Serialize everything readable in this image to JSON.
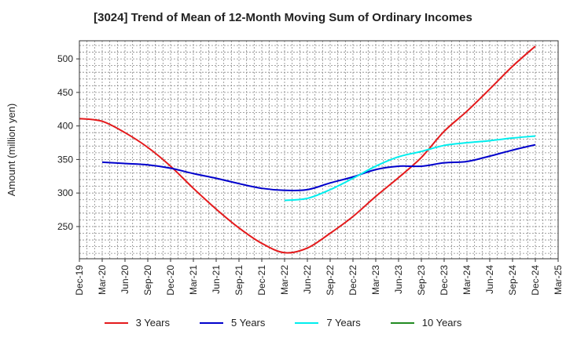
{
  "chart_data": {
    "type": "line",
    "title": "[3024]  Trend of Mean of 12-Month Moving Sum of Ordinary Incomes",
    "xlabel": "",
    "ylabel": "Amount (million yen)",
    "x_ticks": [
      "Dec-19",
      "Mar-20",
      "Jun-20",
      "Sep-20",
      "Dec-20",
      "Mar-21",
      "Jun-21",
      "Sep-21",
      "Dec-21",
      "Mar-22",
      "Jun-22",
      "Sep-22",
      "Dec-22",
      "Mar-23",
      "Jun-23",
      "Sep-23",
      "Dec-23",
      "Mar-24",
      "Jun-24",
      "Sep-24",
      "Dec-24",
      "Mar-25"
    ],
    "y_ticks": [
      250,
      300,
      350,
      400,
      450,
      500
    ],
    "ylim": [
      202,
      527
    ],
    "grid": true,
    "legend_position": "bottom",
    "series": [
      {
        "name": "3 Years",
        "color": "#e41a1c",
        "x_index": [
          0,
          1,
          2,
          3,
          4,
          5,
          6,
          7,
          8,
          9,
          10,
          11,
          12,
          13,
          14,
          15,
          16,
          17,
          18,
          19,
          20
        ],
        "values": [
          411,
          407,
          390,
          368,
          340,
          307,
          276,
          248,
          225,
          211,
          218,
          240,
          265,
          295,
          323,
          353,
          392,
          422,
          455,
          489,
          519
        ]
      },
      {
        "name": "5 Years",
        "color": "#0000cc",
        "x_index": [
          1,
          2,
          3,
          4,
          5,
          6,
          7,
          8,
          9,
          10,
          11,
          12,
          13,
          14,
          15,
          16,
          17,
          18,
          19,
          20
        ],
        "values": [
          346,
          344,
          342,
          337,
          329,
          322,
          314,
          307,
          304,
          305,
          315,
          324,
          335,
          340,
          340,
          345,
          347,
          355,
          364,
          372
        ]
      },
      {
        "name": "7 Years",
        "color": "#00eeee",
        "x_index": [
          9,
          10,
          11,
          12,
          13,
          14,
          15,
          16,
          17,
          18,
          19,
          20
        ],
        "values": [
          289,
          292,
          305,
          322,
          340,
          354,
          362,
          371,
          375,
          378,
          382,
          385
        ]
      },
      {
        "name": "10 Years",
        "color": "#228b22",
        "x_index": [],
        "values": []
      }
    ]
  }
}
